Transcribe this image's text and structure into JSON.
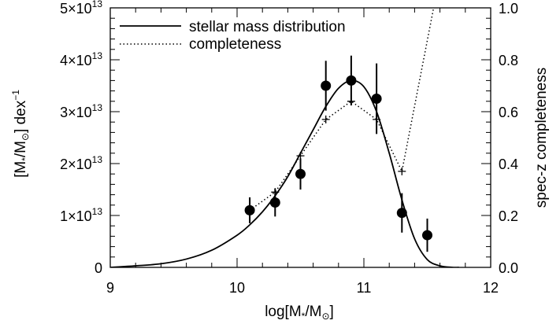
{
  "chart_data": {
    "type": "line",
    "xlabel": "log[M*/M⊙]",
    "ylabel_left": "[M*/M⊙] dex⁻¹",
    "ylabel_right": "spec-z completeness",
    "xlim": [
      9,
      12
    ],
    "ylim_left": [
      0,
      50000000000000.0
    ],
    "ylim_right": [
      0,
      1.0
    ],
    "x_ticks": [
      "9",
      "10",
      "11",
      "12"
    ],
    "y_left_ticks": [
      {
        "mant": "0",
        "exp": ""
      },
      {
        "mant": "1×10",
        "exp": "13"
      },
      {
        "mant": "2×10",
        "exp": "13"
      },
      {
        "mant": "3×10",
        "exp": "13"
      },
      {
        "mant": "4×10",
        "exp": "13"
      },
      {
        "mant": "5×10",
        "exp": "13"
      }
    ],
    "y_right_ticks": [
      "0.0",
      "0.2",
      "0.4",
      "0.6",
      "0.8",
      "1.0"
    ],
    "legend": {
      "position": "top-left",
      "entries": [
        {
          "label": "stellar mass distribution",
          "style": "solid"
        },
        {
          "label": "completeness",
          "style": "dotted"
        }
      ]
    },
    "series": [
      {
        "name": "stellar mass distribution",
        "kind": "curve",
        "x": [
          9.0,
          9.2,
          9.4,
          9.6,
          9.8,
          10.0,
          10.1,
          10.2,
          10.3,
          10.4,
          10.5,
          10.6,
          10.7,
          10.8,
          10.9,
          11.0,
          11.1,
          11.2,
          11.3,
          11.4,
          11.5,
          11.6,
          11.7,
          11.75
        ],
        "y": [
          0.0,
          300000000000.0,
          700000000000.0,
          1600000000000.0,
          3300000000000.0,
          6200000000000.0,
          8200000000000.0,
          10700000000000.0,
          13800000000000.0,
          17500000000000.0,
          22000000000000.0,
          26500000000000.0,
          31000000000000.0,
          34500000000000.0,
          36000000000000.0,
          34800000000000.0,
          30000000000000.0,
          22000000000000.0,
          13000000000000.0,
          5500000000000.0,
          1500000000000.0,
          300000000000.0,
          0.0,
          0.0
        ]
      },
      {
        "name": "data points",
        "kind": "points",
        "x": [
          10.1,
          10.3,
          10.5,
          10.7,
          10.9,
          11.1,
          11.3,
          11.5
        ],
        "y": [
          11000000000000.0,
          12500000000000.0,
          18000000000000.0,
          35000000000000.0,
          36000000000000.0,
          32500000000000.0,
          10500000000000.0,
          6200000000000.0
        ],
        "yerr": [
          2500000000000.0,
          2700000000000.0,
          3000000000000.0,
          4800000000000.0,
          4800000000000.0,
          6800000000000.0,
          3800000000000.0,
          3200000000000.0
        ]
      },
      {
        "name": "completeness",
        "kind": "dotted",
        "axis": "right",
        "x": [
          10.1,
          10.3,
          10.5,
          10.7,
          10.9,
          11.1,
          11.3,
          11.55
        ],
        "y": [
          0.22,
          0.29,
          0.43,
          0.57,
          0.64,
          0.57,
          0.37,
          1.0
        ],
        "markers": [
          0.29,
          0.43,
          0.57,
          0.64,
          0.57,
          0.37
        ],
        "marker_x": [
          10.3,
          10.5,
          10.7,
          10.9,
          11.1,
          11.3
        ]
      }
    ]
  }
}
